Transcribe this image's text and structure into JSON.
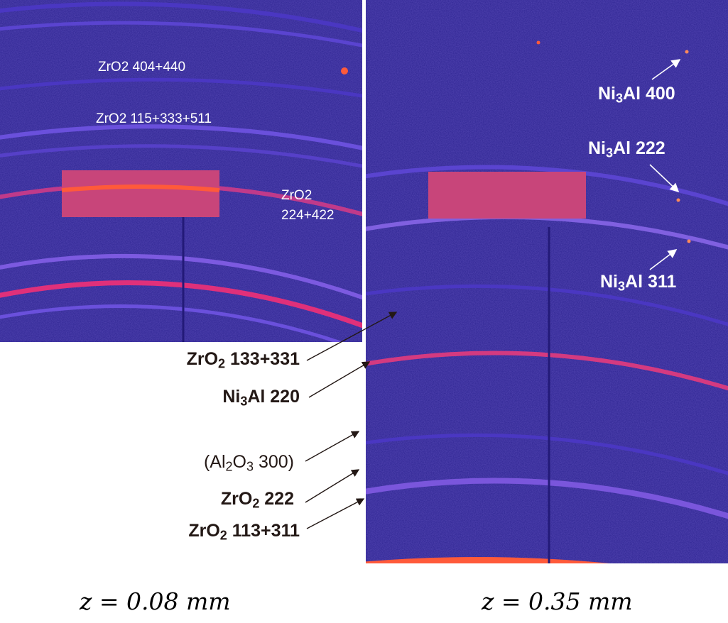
{
  "left_panel": {
    "labels": {
      "zro2_404_440": "ZrO2 404+440",
      "zro2_115_333_511": "ZrO2 115+333+511",
      "zro2_224_line1": "ZrO2",
      "zro2_224_line2": "224+422"
    }
  },
  "right_panel": {
    "labels": {
      "ni3al_400": {
        "base": "Ni",
        "sub": "3",
        "rest": "Al 400"
      },
      "ni3al_222": {
        "base": "Ni",
        "sub": "3",
        "rest": "Al 222"
      },
      "ni3al_311": {
        "base": "Ni",
        "sub": "3",
        "rest": "Al 311"
      }
    }
  },
  "peak_labels": {
    "zro2_133_331": {
      "base": "ZrO",
      "sub": "2",
      "rest": " 133+331"
    },
    "ni3al_220": {
      "base": "Ni",
      "sub": "3",
      "rest": "Al 220"
    },
    "al2o3_300": {
      "pre": "(Al",
      "sub1": "2",
      "mid": "O",
      "sub2": "3",
      "rest": " 300)"
    },
    "zro2_222": {
      "base": "ZrO",
      "sub": "2",
      "rest": " 222"
    },
    "zro2_113_311": {
      "base": "ZrO",
      "sub": "2",
      "rest": " 113+311"
    }
  },
  "captions": {
    "left": "z = 0.08 mm",
    "right": "z = 0.35 mm"
  },
  "colors": {
    "background": "#2a1f8c",
    "ring": "#7a4fd8",
    "bright_ring": "#e8307a",
    "mask": "#c8457a",
    "label_white": "#ffffff",
    "label_dark": "#231815"
  }
}
